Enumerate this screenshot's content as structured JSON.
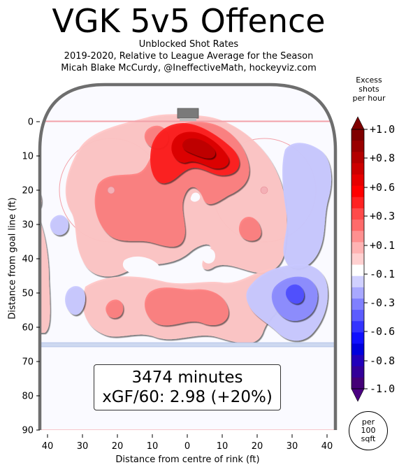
{
  "header": {
    "title": "VGK 5v5 Offence",
    "subtitle_line1": "Unblocked Shot Rates",
    "subtitle_line2": "2019-2020, Relative to League Average for the Season",
    "subtitle_line3": "Micah Blake McCurdy, @IneffectiveMath, hockeyviz.com"
  },
  "stats": {
    "minutes": "3474 minutes",
    "xgf": "xGF/60: 2.98 (+20%)"
  },
  "colorbar": {
    "title_line1": "Excess",
    "title_line2": "shots",
    "title_line3": "per hour",
    "tick_labels": [
      "+1.0",
      "+0.8",
      "+0.6",
      "+0.3",
      "+0.1",
      "-0.1",
      "-0.3",
      "-0.6",
      "-0.8",
      "-1.0"
    ],
    "colors_top_to_bottom": [
      "#7f0000",
      "#990000",
      "#b30000",
      "#cc0000",
      "#e60000",
      "#ff0000",
      "#ff2222",
      "#ff4a4a",
      "#ff6b6b",
      "#ff9090",
      "#ffb3b3",
      "#ffd0d0",
      "#ffffff",
      "#d0d0ff",
      "#a8a8ff",
      "#8080ff",
      "#5c5cff",
      "#3333ff",
      "#1010ff",
      "#0000dd",
      "#2200bb",
      "#330099",
      "#440077"
    ]
  },
  "unit_note": {
    "line1": "per",
    "line2": "100",
    "line3": "sqft"
  },
  "colors": {
    "positive": "#ff0000",
    "negative": "#0000ff",
    "rink_border": "#6e6e6e",
    "goal_line": "#f2a0a8",
    "blue_line": "#b8c8ec"
  },
  "chart_data": {
    "type": "heatmap",
    "xlabel": "Distance from centre of rink (ft)",
    "ylabel": "Distance from goal line (ft)",
    "x_ticks": [
      40,
      30,
      20,
      10,
      0,
      10,
      20,
      30,
      40
    ],
    "y_ticks": [
      0,
      10,
      20,
      30,
      40,
      50,
      60,
      70,
      80,
      90
    ],
    "xlim": [
      -42.5,
      42.5
    ],
    "ylim": [
      -11,
      90
    ],
    "regions": [
      {
        "name": "slot-high-danger",
        "x": 0,
        "y": 9,
        "level": 1.0
      },
      {
        "name": "slot-mid",
        "x": 2,
        "y": 15,
        "level": 0.6
      },
      {
        "name": "right-faceoff",
        "x": 18,
        "y": 31,
        "level": 0.3
      },
      {
        "name": "left-circle",
        "x": -15,
        "y": 30,
        "level": 0.3
      },
      {
        "name": "point-area",
        "x": 5,
        "y": 50,
        "level": 0.3
      },
      {
        "name": "right-point",
        "x": 30,
        "y": 49,
        "level": -0.6
      },
      {
        "name": "right-boards",
        "x": 32,
        "y": 20,
        "level": -0.1
      },
      {
        "name": "left-boards",
        "x": -38,
        "y": 30,
        "level": -0.1
      }
    ]
  }
}
